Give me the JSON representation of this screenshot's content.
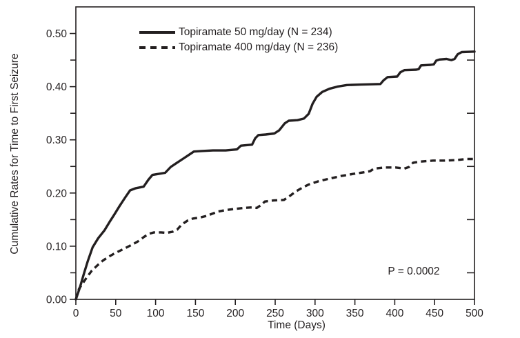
{
  "colors": {
    "ink": "#231f20",
    "background": "#ffffff"
  },
  "chart_data": {
    "type": "line",
    "title": "",
    "xlabel": "Time (Days)",
    "ylabel": "Cumulative Rates for Time to First Seizure",
    "xlim": [
      0,
      500
    ],
    "ylim": [
      0,
      0.55
    ],
    "grid": false,
    "legend_position": "top-left-inside",
    "x_ticks": [
      {
        "v": 0,
        "label": "0"
      },
      {
        "v": 50,
        "label": "50"
      },
      {
        "v": 100,
        "label": "100"
      },
      {
        "v": 150,
        "label": "150"
      },
      {
        "v": 200,
        "label": "200"
      },
      {
        "v": 250,
        "label": "250"
      },
      {
        "v": 300,
        "label": "300"
      },
      {
        "v": 350,
        "label": "350"
      },
      {
        "v": 400,
        "label": "400"
      },
      {
        "v": 450,
        "label": "450"
      },
      {
        "v": 500,
        "label": "500"
      }
    ],
    "y_ticks_major": [
      {
        "v": 0.0,
        "label": "0.00"
      },
      {
        "v": 0.1,
        "label": "0.10"
      },
      {
        "v": 0.2,
        "label": "0.20"
      },
      {
        "v": 0.3,
        "label": "0.30"
      },
      {
        "v": 0.4,
        "label": "0.40"
      },
      {
        "v": 0.5,
        "label": "0.50"
      }
    ],
    "y_ticks_minor": [
      0.05,
      0.15,
      0.25,
      0.35,
      0.45
    ],
    "right_edge_ticks": [
      0.05,
      0.15,
      0.25,
      0.35,
      0.45
    ],
    "annotation": {
      "text": "P = 0.0002"
    },
    "series": [
      {
        "name": "Topiramate 50 mg/day (N = 234)",
        "style": "solid",
        "points": [
          [
            0,
            0
          ],
          [
            5,
            0.022
          ],
          [
            10,
            0.048
          ],
          [
            15,
            0.072
          ],
          [
            21,
            0.098
          ],
          [
            28,
            0.115
          ],
          [
            36,
            0.13
          ],
          [
            42,
            0.145
          ],
          [
            48,
            0.159
          ],
          [
            55,
            0.176
          ],
          [
            62,
            0.192
          ],
          [
            68,
            0.205
          ],
          [
            75,
            0.209
          ],
          [
            85,
            0.212
          ],
          [
            91,
            0.225
          ],
          [
            96,
            0.234
          ],
          [
            104,
            0.236
          ],
          [
            112,
            0.238
          ],
          [
            119,
            0.249
          ],
          [
            126,
            0.256
          ],
          [
            134,
            0.264
          ],
          [
            142,
            0.272
          ],
          [
            148,
            0.278
          ],
          [
            158,
            0.279
          ],
          [
            172,
            0.28
          ],
          [
            188,
            0.28
          ],
          [
            202,
            0.282
          ],
          [
            207,
            0.289
          ],
          [
            214,
            0.29
          ],
          [
            221,
            0.291
          ],
          [
            225,
            0.303
          ],
          [
            229,
            0.309
          ],
          [
            238,
            0.31
          ],
          [
            249,
            0.312
          ],
          [
            255,
            0.318
          ],
          [
            262,
            0.331
          ],
          [
            267,
            0.336
          ],
          [
            278,
            0.337
          ],
          [
            286,
            0.34
          ],
          [
            292,
            0.349
          ],
          [
            297,
            0.368
          ],
          [
            302,
            0.381
          ],
          [
            309,
            0.39
          ],
          [
            318,
            0.396
          ],
          [
            328,
            0.4
          ],
          [
            340,
            0.403
          ],
          [
            358,
            0.404
          ],
          [
            382,
            0.405
          ],
          [
            386,
            0.412
          ],
          [
            391,
            0.418
          ],
          [
            403,
            0.419
          ],
          [
            407,
            0.427
          ],
          [
            412,
            0.431
          ],
          [
            427,
            0.432
          ],
          [
            430,
            0.433
          ],
          [
            433,
            0.44
          ],
          [
            445,
            0.441
          ],
          [
            449,
            0.442
          ],
          [
            452,
            0.449
          ],
          [
            456,
            0.451
          ],
          [
            465,
            0.452
          ],
          [
            471,
            0.45
          ],
          [
            475,
            0.452
          ],
          [
            479,
            0.461
          ],
          [
            484,
            0.465
          ],
          [
            500,
            0.466
          ]
        ]
      },
      {
        "name": "Topiramate 400 mg/day (N = 236)",
        "style": "dashed",
        "points": [
          [
            0,
            0
          ],
          [
            4,
            0.02
          ],
          [
            9,
            0.031
          ],
          [
            14,
            0.042
          ],
          [
            20,
            0.054
          ],
          [
            27,
            0.064
          ],
          [
            34,
            0.073
          ],
          [
            41,
            0.08
          ],
          [
            48,
            0.086
          ],
          [
            56,
            0.092
          ],
          [
            64,
            0.098
          ],
          [
            72,
            0.104
          ],
          [
            79,
            0.11
          ],
          [
            85,
            0.117
          ],
          [
            91,
            0.123
          ],
          [
            98,
            0.126
          ],
          [
            107,
            0.126
          ],
          [
            114,
            0.125
          ],
          [
            121,
            0.127
          ],
          [
            127,
            0.131
          ],
          [
            133,
            0.141
          ],
          [
            140,
            0.148
          ],
          [
            147,
            0.152
          ],
          [
            156,
            0.154
          ],
          [
            164,
            0.157
          ],
          [
            171,
            0.161
          ],
          [
            178,
            0.165
          ],
          [
            188,
            0.168
          ],
          [
            199,
            0.17
          ],
          [
            211,
            0.172
          ],
          [
            221,
            0.173
          ],
          [
            227,
            0.172
          ],
          [
            232,
            0.177
          ],
          [
            237,
            0.184
          ],
          [
            248,
            0.186
          ],
          [
            261,
            0.187
          ],
          [
            268,
            0.194
          ],
          [
            276,
            0.203
          ],
          [
            284,
            0.21
          ],
          [
            292,
            0.216
          ],
          [
            304,
            0.222
          ],
          [
            318,
            0.227
          ],
          [
            333,
            0.232
          ],
          [
            348,
            0.236
          ],
          [
            361,
            0.239
          ],
          [
            369,
            0.241
          ],
          [
            374,
            0.246
          ],
          [
            388,
            0.248
          ],
          [
            401,
            0.248
          ],
          [
            412,
            0.246
          ],
          [
            418,
            0.249
          ],
          [
            423,
            0.257
          ],
          [
            432,
            0.259
          ],
          [
            448,
            0.261
          ],
          [
            463,
            0.261
          ],
          [
            478,
            0.262
          ],
          [
            490,
            0.264
          ],
          [
            500,
            0.264
          ]
        ]
      }
    ]
  }
}
